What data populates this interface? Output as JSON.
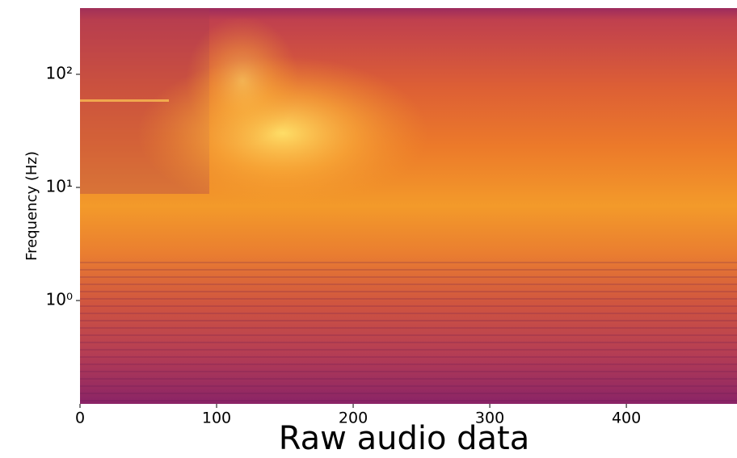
{
  "chart_data": {
    "type": "spectrogram",
    "xlabel": "Raw audio data",
    "ylabel": "Frequency (Hz)",
    "xlim": [
      0,
      481
    ],
    "xticks": [
      0,
      100,
      200,
      300,
      400
    ],
    "ylim": [
      0.122,
      385
    ],
    "yscale": "log",
    "yticks": [
      {
        "value": 1,
        "label": "10⁰"
      },
      {
        "value": 10,
        "label": "10¹"
      },
      {
        "value": 100,
        "label": "10²"
      }
    ]
  }
}
